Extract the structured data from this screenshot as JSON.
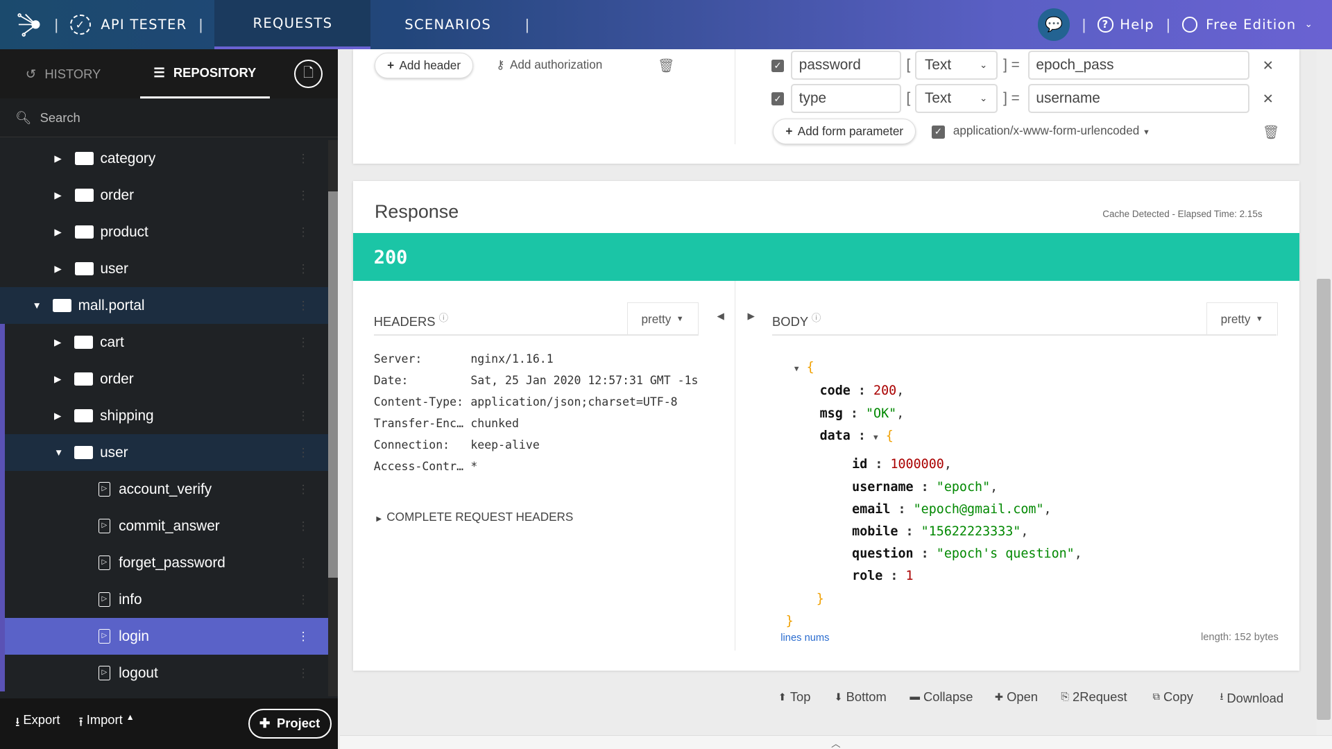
{
  "topbar": {
    "app": "API TESTER",
    "tabs": [
      "REQUESTS",
      "SCENARIOS"
    ],
    "active_tab": "REQUESTS",
    "help": "Help",
    "edition": "Free Edition",
    "accent": "#6a62d2"
  },
  "sidebar": {
    "tabs": [
      "HISTORY",
      "REPOSITORY"
    ],
    "active_tab": "REPOSITORY",
    "search_placeholder": "Search",
    "tree": [
      {
        "label": "category",
        "type": "folder",
        "level": 1
      },
      {
        "label": "order",
        "type": "folder",
        "level": 1
      },
      {
        "label": "product",
        "type": "folder",
        "level": 1
      },
      {
        "label": "user",
        "type": "folder",
        "level": 1
      },
      {
        "label": "mall.portal",
        "type": "project",
        "level": 0,
        "expanded": true
      },
      {
        "label": "cart",
        "type": "folder",
        "level": 1
      },
      {
        "label": "order",
        "type": "folder",
        "level": 1
      },
      {
        "label": "shipping",
        "type": "folder",
        "level": 1
      },
      {
        "label": "user",
        "type": "folder",
        "level": 1,
        "expanded": true
      },
      {
        "label": "account_verify",
        "type": "request",
        "level": 2
      },
      {
        "label": "commit_answer",
        "type": "request",
        "level": 2
      },
      {
        "label": "forget_password",
        "type": "request",
        "level": 2
      },
      {
        "label": "info",
        "type": "request",
        "level": 2
      },
      {
        "label": "login",
        "type": "request",
        "level": 2,
        "selected": true
      },
      {
        "label": "logout",
        "type": "request",
        "level": 2
      }
    ],
    "export": "Export",
    "import": "Import",
    "project": "Project"
  },
  "request": {
    "add_header": "Add header",
    "add_authorization": "Add authorization",
    "form_params": [
      {
        "checked": true,
        "name": "password",
        "type": "Text",
        "value": "epoch_pass"
      },
      {
        "checked": true,
        "name": "type",
        "type": "Text",
        "value": "username"
      }
    ],
    "add_form_parameter": "Add form parameter",
    "content_type": "application/x-www-form-urlencoded",
    "content_type_checked": true
  },
  "response": {
    "title": "Response",
    "meta": "Cache Detected - Elapsed Time: 2.15s",
    "status": "200",
    "status_color": "#1bc5a6",
    "headers_label": "HEADERS",
    "headers_format": "pretty",
    "body_label": "BODY",
    "body_format": "pretty",
    "headers": [
      {
        "k": "Server:",
        "v": "nginx/1.16.1"
      },
      {
        "k": "Date:",
        "v": "Sat, 25 Jan 2020 12:57:31 GMT -1s"
      },
      {
        "k": "Content-Type:",
        "v": "application/json;charset=UTF-8"
      },
      {
        "k": "Transfer-Enc…",
        "v": "chunked"
      },
      {
        "k": "Connection:",
        "v": "keep-alive"
      },
      {
        "k": "Access-Contr…",
        "v": "*"
      }
    ],
    "complete_headers": "COMPLETE REQUEST HEADERS",
    "body": {
      "code": "200",
      "msg": "\"OK\"",
      "id": "1000000",
      "username": "\"epoch\"",
      "email": "\"epoch@gmail.com\"",
      "mobile": "\"15622223333\"",
      "question": "\"epoch's question\"",
      "role": "1"
    },
    "lines_nums": "lines nums",
    "length": "length: 152 bytes"
  },
  "toolbar": [
    "Top",
    "Bottom",
    "Collapse",
    "Open",
    "2Request",
    "Copy",
    "Download"
  ]
}
